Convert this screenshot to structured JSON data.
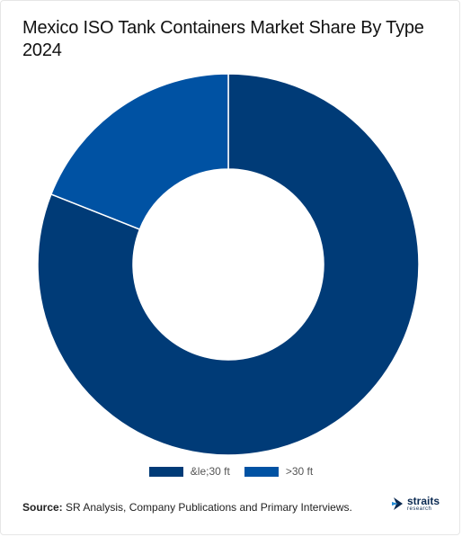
{
  "title": "Mexico ISO Tank Containers Market Share By Type 2024",
  "source_label": "Source:",
  "source_text": " SR Analysis, Company Publications and Primary Interviews.",
  "logo": {
    "name": "straits",
    "sub": "research"
  },
  "chart_data": {
    "type": "pie",
    "donut": true,
    "categories": [
      "&le;30 ft",
      ">30 ft"
    ],
    "values": [
      81,
      19
    ],
    "colors": [
      "#003b77",
      "#0052a3"
    ],
    "legend_position": "bottom"
  }
}
